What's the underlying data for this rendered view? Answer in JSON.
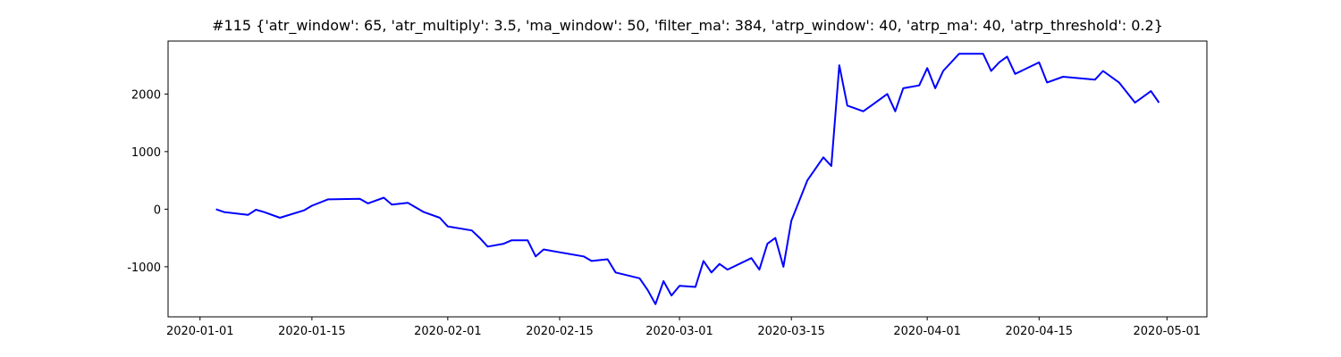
{
  "chart_data": {
    "type": "line",
    "title": "#115 {'atr_window': 65, 'atr_multiply': 3.5, 'ma_window': 50, 'filter_ma': 384, 'atrp_window': 40, 'atrp_ma': 40, 'atrp_threshold': 0.2}",
    "x": [
      "2020-01-03",
      "2020-01-04",
      "2020-01-07",
      "2020-01-08",
      "2020-01-09",
      "2020-01-11",
      "2020-01-14",
      "2020-01-15",
      "2020-01-17",
      "2020-01-21",
      "2020-01-22",
      "2020-01-24",
      "2020-01-25",
      "2020-01-27",
      "2020-01-29",
      "2020-01-31",
      "2020-02-01",
      "2020-02-04",
      "2020-02-05",
      "2020-02-06",
      "2020-02-08",
      "2020-02-09",
      "2020-02-11",
      "2020-02-12",
      "2020-02-13",
      "2020-02-15",
      "2020-02-18",
      "2020-02-19",
      "2020-02-21",
      "2020-02-22",
      "2020-02-25",
      "2020-02-26",
      "2020-02-27",
      "2020-02-28",
      "2020-02-29",
      "2020-03-01",
      "2020-03-03",
      "2020-03-04",
      "2020-03-05",
      "2020-03-06",
      "2020-03-07",
      "2020-03-10",
      "2020-03-11",
      "2020-03-12",
      "2020-03-13",
      "2020-03-14",
      "2020-03-15",
      "2020-03-17",
      "2020-03-19",
      "2020-03-20",
      "2020-03-21",
      "2020-03-22",
      "2020-03-24",
      "2020-03-25",
      "2020-03-27",
      "2020-03-28",
      "2020-03-29",
      "2020-03-31",
      "2020-04-01",
      "2020-04-02",
      "2020-04-03",
      "2020-04-05",
      "2020-04-08",
      "2020-04-09",
      "2020-04-10",
      "2020-04-11",
      "2020-04-12",
      "2020-04-15",
      "2020-04-16",
      "2020-04-18",
      "2020-04-22",
      "2020-04-23",
      "2020-04-25",
      "2020-04-27",
      "2020-04-28",
      "2020-04-29",
      "2020-04-30"
    ],
    "series": [
      {
        "color": "#0000ff",
        "values": [
          0,
          -50,
          -100,
          -10,
          -50,
          -150,
          -20,
          60,
          170,
          180,
          100,
          200,
          80,
          110,
          -50,
          -150,
          -300,
          -370,
          -500,
          -650,
          -600,
          -540,
          -540,
          -820,
          -700,
          -750,
          -820,
          -900,
          -870,
          -1100,
          -1200,
          -1400,
          -1650,
          -1250,
          -1500,
          -1330,
          -1350,
          -900,
          -1100,
          -950,
          -1050,
          -850,
          -1050,
          -600,
          -500,
          -1000,
          -200,
          500,
          900,
          750,
          2500,
          1800,
          1700,
          1800,
          2000,
          1700,
          2100,
          2150,
          2450,
          2100,
          2400,
          2700,
          2700,
          2400,
          2550,
          2650,
          2350,
          2550,
          2200,
          2300,
          2250,
          2400,
          2200,
          1850,
          1950,
          2050,
          1850
        ]
      }
    ],
    "xlim": [
      "2019-12-28",
      "2020-05-06"
    ],
    "xticks": [
      "2020-01-01",
      "2020-01-15",
      "2020-02-01",
      "2020-02-15",
      "2020-03-01",
      "2020-03-15",
      "2020-04-01",
      "2020-04-15",
      "2020-05-01"
    ],
    "ylim": [
      -1870,
      2920
    ],
    "yticks": [
      -1000,
      0,
      1000,
      2000
    ]
  }
}
